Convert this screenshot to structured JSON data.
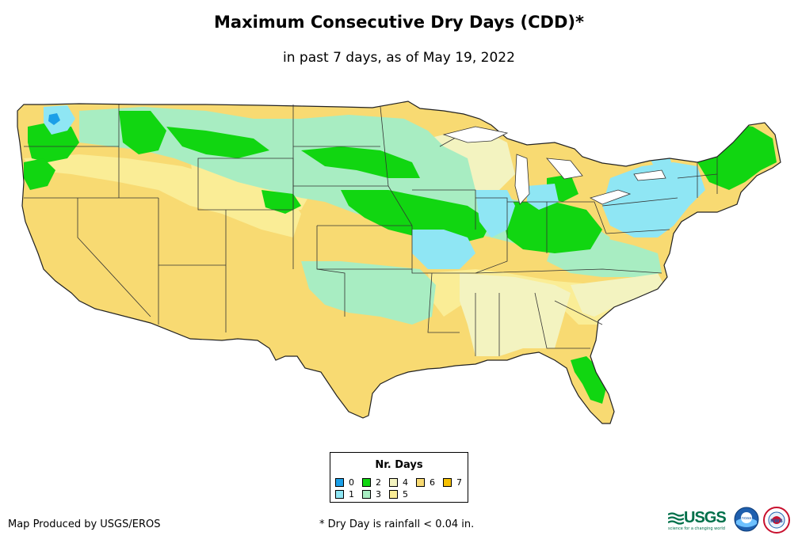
{
  "title": "Maximum Consecutive Dry Days (CDD)*",
  "subtitle": "in past 7 days, as of May 19, 2022",
  "legend": {
    "title": "Nr. Days",
    "items": [
      {
        "label": "0",
        "color": "#1b9fe8"
      },
      {
        "label": "1",
        "color": "#8fe6f4"
      },
      {
        "label": "2",
        "color": "#11d611"
      },
      {
        "label": "3",
        "color": "#a8edc2"
      },
      {
        "label": "4",
        "color": "#f3f3c0"
      },
      {
        "label": "5",
        "color": "#faed96"
      },
      {
        "label": "6",
        "color": "#f8da72"
      },
      {
        "label": "7",
        "color": "#f5c000"
      }
    ]
  },
  "footer": {
    "credit": "Map Produced by USGS/EROS",
    "note": "* Dry Day is rainfall < 0.04 in."
  },
  "logos": {
    "usgs": "USGS",
    "usgs_tagline": "science for a changing world",
    "noaa": "noaa",
    "nws": "NWS"
  },
  "map": {
    "subject": "Contiguous United States dry-day map",
    "colors": {
      "yellow": "#f8da72",
      "pale_yellow": "#faed96",
      "cream": "#f3f3c0",
      "mint": "#a8edc2",
      "green": "#11d611",
      "light_blue": "#8fe6f4",
      "blue": "#1b9fe8"
    }
  }
}
